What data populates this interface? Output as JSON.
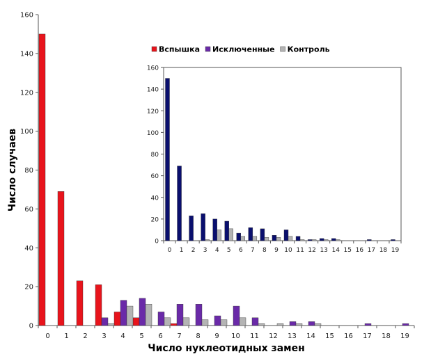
{
  "chart_data": [
    {
      "type": "bar",
      "xlabel": "Число нуклеотидных замен",
      "ylabel": "Число случаев",
      "ylim": [
        0,
        160
      ],
      "y_ticks": [
        0,
        20,
        40,
        60,
        80,
        100,
        120,
        140,
        160
      ],
      "categories": [
        "0",
        "1",
        "2",
        "3",
        "4",
        "5",
        "6",
        "7",
        "8",
        "9",
        "10",
        "11",
        "12",
        "13",
        "14",
        "15",
        "16",
        "17",
        "18",
        "19"
      ],
      "legend_position": "top-center",
      "series": [
        {
          "name": "Вспышка",
          "color": "#e8141c",
          "values": [
            150,
            69,
            23,
            21,
            7,
            4,
            0,
            1,
            0,
            0,
            0,
            0,
            0,
            0,
            0,
            0,
            0,
            0,
            0,
            0
          ]
        },
        {
          "name": "Исключенные",
          "color": "#6a2aa8",
          "values": [
            0,
            0,
            0,
            4,
            13,
            14,
            7,
            11,
            11,
            5,
            10,
            4,
            0,
            2,
            2,
            0,
            0,
            1,
            0,
            1
          ]
        },
        {
          "name": "Контроль",
          "color": "#b4b4b4",
          "values": [
            0,
            0,
            0,
            1,
            10,
            11,
            4,
            4,
            3,
            3,
            4,
            1,
            1,
            1,
            1,
            0,
            0,
            0,
            0,
            0
          ]
        }
      ]
    },
    {
      "type": "bar",
      "ylim": [
        0,
        160
      ],
      "y_ticks": [
        0,
        20,
        40,
        60,
        80,
        100,
        120,
        140,
        160
      ],
      "categories": [
        "0",
        "1",
        "2",
        "3",
        "4",
        "5",
        "6",
        "7",
        "8",
        "9",
        "10",
        "11",
        "12",
        "13",
        "14",
        "15",
        "16",
        "17",
        "18",
        "19"
      ],
      "series": [
        {
          "color": "#0a0f6e",
          "values": [
            150,
            69,
            23,
            25,
            20,
            18,
            7,
            12,
            11,
            5,
            10,
            4,
            1,
            2,
            2,
            0,
            0,
            1,
            0,
            1
          ]
        },
        {
          "color": "#b4b4b4",
          "values": [
            0,
            0,
            0,
            1,
            10,
            11,
            4,
            4,
            3,
            3,
            4,
            1,
            1,
            1,
            1,
            0,
            0,
            0,
            0,
            0
          ]
        }
      ]
    }
  ]
}
